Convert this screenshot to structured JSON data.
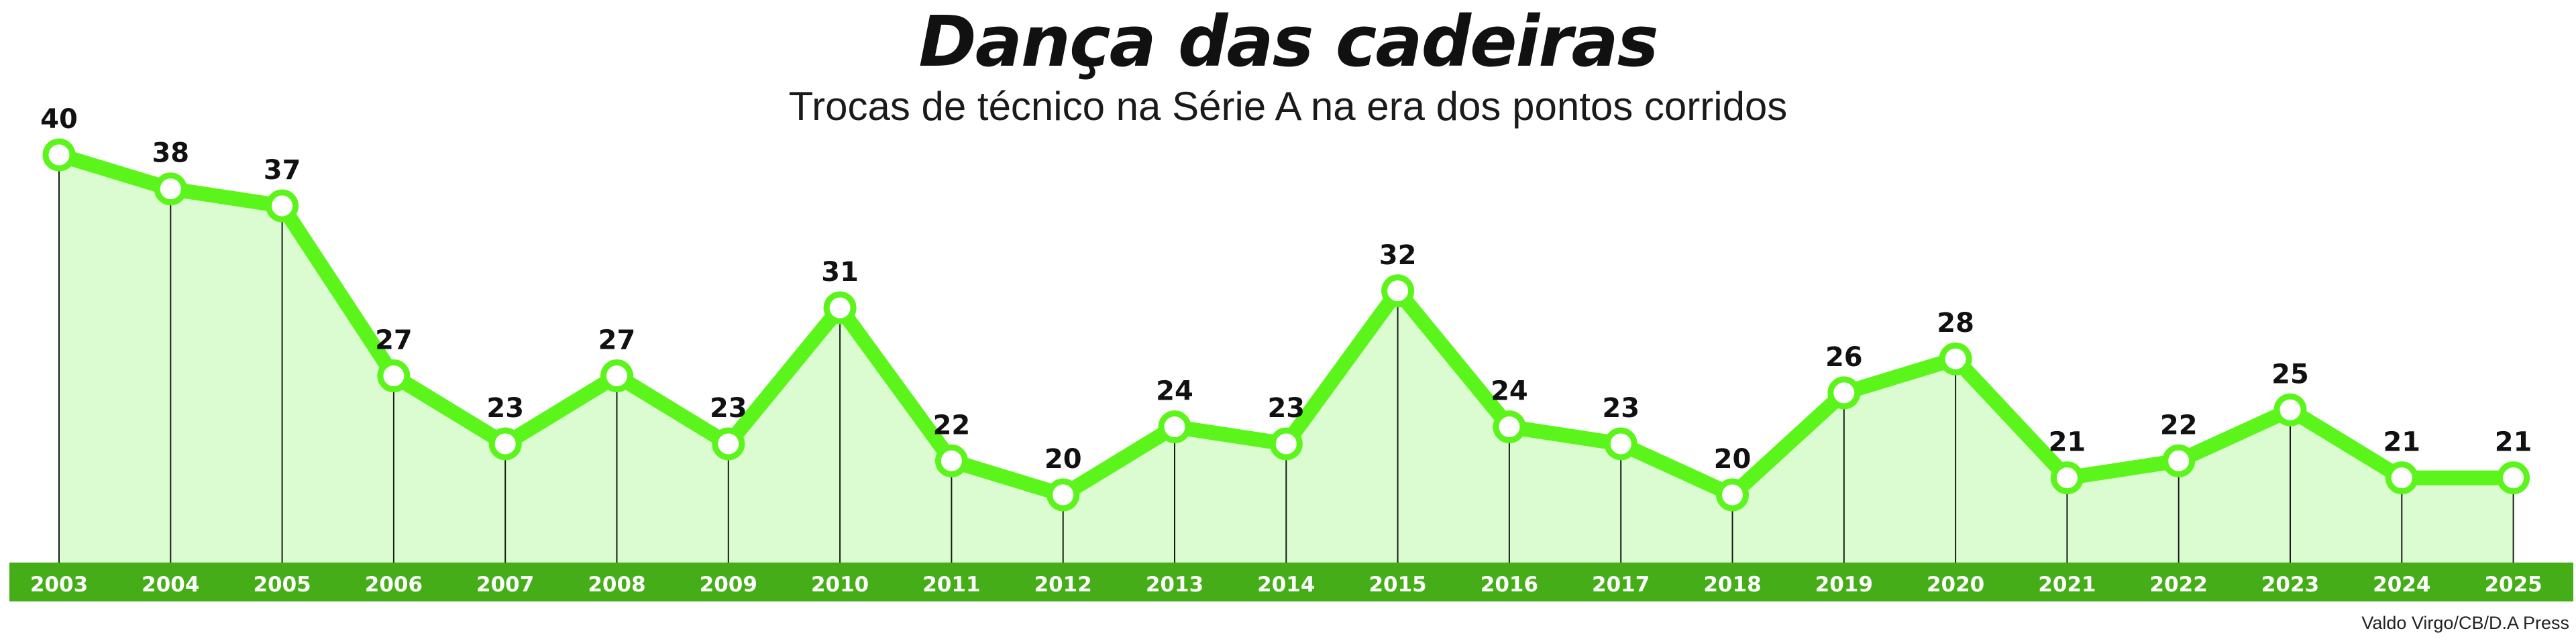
{
  "header": {
    "title": "Dança das cadeiras",
    "subtitle": "Trocas de técnico na Série A na era dos pontos corridos"
  },
  "credit": "Valdo Virgo/CB/D.A Press",
  "colors": {
    "line": "#5cf51b",
    "area": "#dbfcd0",
    "axis_band": "#45ad17",
    "drop_lines": "#1a1a1a",
    "marker_fill": "#ffffff"
  },
  "chart_data": {
    "type": "line",
    "title": "Dança das cadeiras",
    "subtitle": "Trocas de técnico na Série A na era dos pontos corridos",
    "xlabel": "",
    "ylabel": "",
    "categories": [
      "2003",
      "2004",
      "2005",
      "2006",
      "2007",
      "2008",
      "2009",
      "2010",
      "2011",
      "2012",
      "2013",
      "2014",
      "2015",
      "2016",
      "2017",
      "2018",
      "2019",
      "2020",
      "2021",
      "2022",
      "2023",
      "2024",
      "2025"
    ],
    "series": [
      {
        "values": [
          40,
          38,
          37,
          27,
          23,
          27,
          23,
          31,
          22,
          20,
          24,
          23,
          32,
          24,
          23,
          20,
          26,
          28,
          21,
          22,
          25,
          21,
          21
        ]
      }
    ],
    "data_labels": true,
    "area_fill": true,
    "grid": false,
    "legend": "none"
  }
}
